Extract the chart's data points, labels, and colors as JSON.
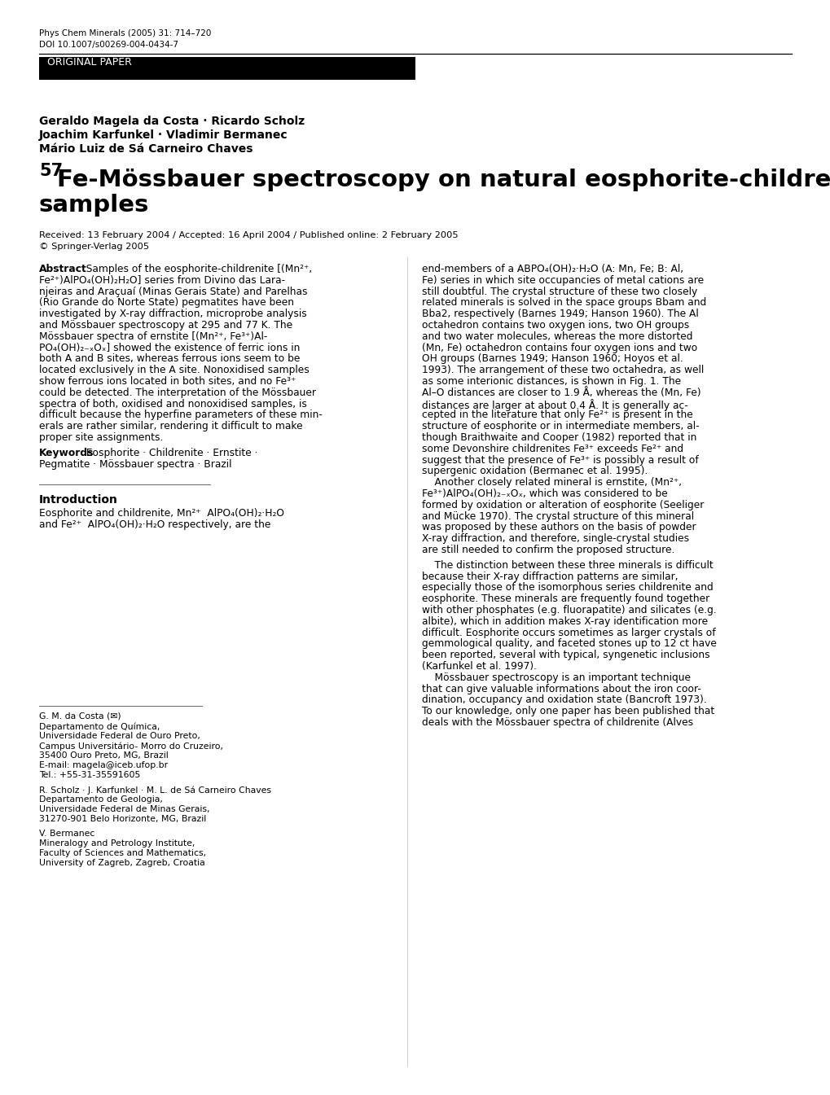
{
  "journal_line1": "Phys Chem Minerals (2005) 31: 714–720",
  "journal_line2": "DOI 10.1007/s00269-004-0434-7",
  "section_label": "ORIGINAL PAPER",
  "authors_line1": "Geraldo Magela da Costa · Ricardo Scholz",
  "authors_line2": "Joachim Karfunkel · Vladimir Bermanec",
  "authors_line3": "Mário Luiz de Sá Carneiro Chaves",
  "title_superscript": "57",
  "received_line": "Received: 13 February 2004 / Accepted: 16 April 2004 / Published online: 2 February 2005",
  "copyright_line": "© Springer-Verlag 2005",
  "abstract_left": [
    "Fe²⁺)AlPO₄(OH)₂H₂O] series from Divino das Lara-",
    "njeiras and Araçuaí (Minas Gerais State) and Parelhas",
    "(Rio Grande do Norte State) pegmatites have been",
    "investigated by X-ray diffraction, microprobe analysis",
    "and Mössbauer spectroscopy at 295 and 77 K. The",
    "Mössbauer spectra of ernstite [(Mn²⁺, Fe³⁺)Al-",
    "PO₄(OH)₂₋ₓOₓ] showed the existence of ferric ions in",
    "both A and B sites, whereas ferrous ions seem to be",
    "located exclusively in the A site. Nonoxidised samples",
    "show ferrous ions located in both sites, and no Fe³⁺",
    "could be detected. The interpretation of the Mössbauer",
    "spectra of both, oxidised and nonoxidised samples, is",
    "difficult because the hyperfine parameters of these min-",
    "erals are rather similar, rendering it difficult to make",
    "proper site assignments."
  ],
  "abstract_first_line_suffix": "  Samples of the eosphorite-childrenite [(Mn²⁺,",
  "keywords_suffix": "  Eosphorite · Childrenite · Ernstite ·",
  "keywords_line2": "Pegmatite · Mössbauer spectra · Brazil",
  "intro_left": [
    "Eosphorite and childrenite, Mn²⁺  AlPO₄(OH)₂·H₂O",
    "and Fe²⁺  AlPO₄(OH)₂·H₂O respectively, are the"
  ],
  "footnote_gmc": [
    "G. M. da Costa (✉)",
    "Departamento de Química,",
    "Universidade Federal de Ouro Preto,",
    "Campus Universitário- Morro do Cruzeiro,",
    "35400 Ouro Preto, MG, Brazil",
    "E-mail: magela@iceb.ufop.br",
    "Tel.: +55-31-35591605"
  ],
  "footnote_rs": [
    "R. Scholz · J. Karfunkel · M. L. de Sá Carneiro Chaves",
    "Departamento de Geologia,",
    "Universidade Federal de Minas Gerais,",
    "31270-901 Belo Horizonte, MG, Brazil"
  ],
  "footnote_vb": [
    "V. Bermanec",
    "Mineralogy and Petrology Institute,",
    "Faculty of Sciences and Mathematics,",
    "University of Zagreb, Zagreb, Croatia"
  ],
  "right_abstract": [
    "end-members of a ABPO₄(OH)₂·H₂O (A: Mn, Fe; B: Al,",
    "Fe) series in which site occupancies of metal cations are",
    "still doubtful. The crystal structure of these two closely",
    "related minerals is solved in the space groups Bbam and",
    "Bba2, respectively (Barnes 1949; Hanson 1960). The Al",
    "octahedron contains two oxygen ions, two OH groups",
    "and two water molecules, whereas the more distorted",
    "(Mn, Fe) octahedron contains four oxygen ions and two",
    "OH groups (Barnes 1949; Hanson 1960; Hoyos et al.",
    "1993). The arrangement of these two octahedra, as well",
    "as some interionic distances, is shown in Fig. 1. The",
    "Al–O distances are closer to 1.9 Å, whereas the (Mn, Fe)",
    "distances are larger at about 0.4 Å. It is generally ac-",
    "cepted in the literature that only Fe²⁺ is present in the",
    "structure of eosphorite or in intermediate members, al-",
    "though Braithwaite and Cooper (1982) reported that in",
    "some Devonshire childrenites Fe³⁺ exceeds Fe²⁺ and",
    "suggest that the presence of Fe³⁺ is possibly a result of",
    "supergenic oxidation (Bermanec et al. 1995).",
    "    Another closely related mineral is ernstite, (Mn²⁺,",
    "Fe³⁺)AlPO₄(OH)₂₋ₓOₓ, which was considered to be",
    "formed by oxidation or alteration of eosphorite (Seeliger",
    "and Mücke 1970). The crystal structure of this mineral",
    "was proposed by these authors on the basis of powder",
    "X-ray diffraction, and therefore, single-crystal studies",
    "are still needed to confirm the proposed structure."
  ],
  "right_intro": [
    "    The distinction between these three minerals is difficult",
    "because their X-ray diffraction patterns are similar,",
    "especially those of the isomorphous series childrenite and",
    "eosphorite. These minerals are frequently found together",
    "with other phosphates (e.g. fluorapatite) and silicates (e.g.",
    "albite), which in addition makes X-ray identification more",
    "difficult. Eosphorite occurs sometimes as larger crystals of",
    "gemmological quality, and faceted stones up to 12 ct have",
    "been reported, several with typical, syngenetic inclusions",
    "(Karfunkel et al. 1997).",
    "    Mössbauer spectroscopy is an important technique",
    "that can give valuable informations about the iron coor-",
    "dination, occupancy and oxidation state (Bancroft 1973).",
    "To our knowledge, only one paper has been published that",
    "deals with the Mössbauer spectra of childrenite (Alves"
  ],
  "bg_color": "#ffffff",
  "text_color": "#000000",
  "header_bg": "#000000",
  "header_text": "#ffffff"
}
